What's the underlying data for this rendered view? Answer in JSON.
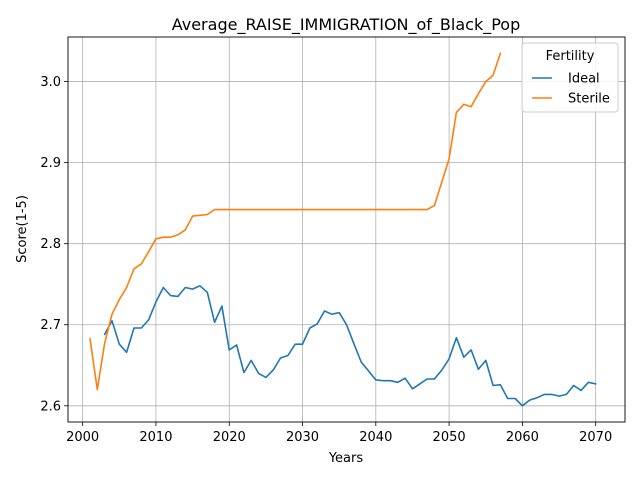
{
  "chart_data": {
    "type": "line",
    "title": "Average_RAISE_IMMIGRATION_of_Black_Pop",
    "xlabel": "Years",
    "ylabel": "Score(1-5)",
    "xlim": [
      1998,
      2074
    ],
    "ylim": [
      2.58,
      3.055
    ],
    "xticks": [
      2000,
      2010,
      2020,
      2030,
      2040,
      2050,
      2060,
      2070
    ],
    "yticks": [
      2.6,
      2.7,
      2.8,
      2.9,
      3.0
    ],
    "ytick_labels": [
      "2.6",
      "2.7",
      "2.8",
      "2.9",
      "3.0"
    ],
    "grid": true,
    "legend": {
      "title": "Fertility",
      "placement": "top-right"
    },
    "series": [
      {
        "name": "Ideal",
        "color": "#1f77b4",
        "x": [
          2003,
          2004,
          2005,
          2006,
          2007,
          2008,
          2009,
          2010,
          2011,
          2012,
          2013,
          2014,
          2015,
          2016,
          2017,
          2018,
          2019,
          2020,
          2021,
          2022,
          2023,
          2024,
          2025,
          2026,
          2027,
          2028,
          2029,
          2030,
          2031,
          2032,
          2033,
          2034,
          2035,
          2036,
          2037,
          2038,
          2039,
          2040,
          2041,
          2042,
          2043,
          2044,
          2045,
          2046,
          2047,
          2048,
          2049,
          2050,
          2051,
          2052,
          2053,
          2054,
          2055,
          2056,
          2057,
          2058,
          2059,
          2060,
          2061,
          2062,
          2063,
          2064,
          2065,
          2066,
          2067,
          2068,
          2069,
          2070
        ],
        "y": [
          2.688,
          2.705,
          2.676,
          2.666,
          2.696,
          2.696,
          2.706,
          2.728,
          2.746,
          2.736,
          2.735,
          2.746,
          2.744,
          2.748,
          2.74,
          2.703,
          2.723,
          2.669,
          2.675,
          2.641,
          2.656,
          2.64,
          2.635,
          2.644,
          2.659,
          2.662,
          2.676,
          2.676,
          2.696,
          2.701,
          2.717,
          2.713,
          2.715,
          2.7,
          2.677,
          2.654,
          2.643,
          2.632,
          2.631,
          2.631,
          2.629,
          2.634,
          2.621,
          2.627,
          2.633,
          2.633,
          2.644,
          2.658,
          2.684,
          2.66,
          2.669,
          2.645,
          2.656,
          2.625,
          2.626,
          2.609,
          2.609,
          2.6,
          2.607,
          2.61,
          2.614,
          2.614,
          2.612,
          2.614,
          2.625,
          2.619,
          2.629,
          2.627
        ]
      },
      {
        "name": "Sterile",
        "color": "#ff7f0e",
        "x": [
          2001,
          2002,
          2003,
          2004,
          2005,
          2006,
          2007,
          2008,
          2009,
          2010,
          2011,
          2012,
          2013,
          2014,
          2015,
          2016,
          2017,
          2018,
          2019,
          2020,
          2021,
          2022,
          2023,
          2024,
          2025,
          2026,
          2027,
          2028,
          2029,
          2030,
          2031,
          2032,
          2033,
          2034,
          2035,
          2036,
          2037,
          2038,
          2039,
          2040,
          2041,
          2042,
          2043,
          2044,
          2045,
          2046,
          2047,
          2048,
          2049,
          2050,
          2051,
          2052,
          2053,
          2054,
          2055,
          2056,
          2057
        ],
        "y": [
          2.683,
          2.62,
          2.677,
          2.713,
          2.731,
          2.746,
          2.769,
          2.775,
          2.79,
          2.806,
          2.808,
          2.808,
          2.811,
          2.817,
          2.834,
          2.835,
          2.836,
          2.842,
          2.842,
          2.842,
          2.842,
          2.842,
          2.842,
          2.842,
          2.842,
          2.842,
          2.842,
          2.842,
          2.842,
          2.842,
          2.842,
          2.842,
          2.842,
          2.842,
          2.842,
          2.842,
          2.842,
          2.842,
          2.842,
          2.842,
          2.842,
          2.842,
          2.842,
          2.842,
          2.842,
          2.842,
          2.842,
          2.847,
          2.876,
          2.905,
          2.962,
          2.972,
          2.969,
          2.985,
          3.0,
          3.008,
          3.035
        ]
      }
    ]
  }
}
